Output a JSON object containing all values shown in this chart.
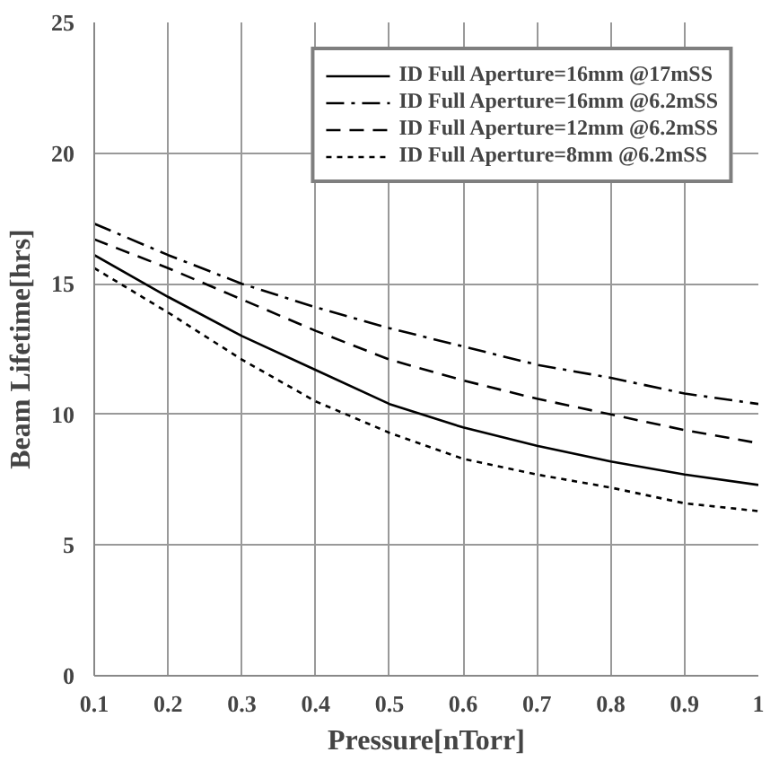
{
  "chart_data": {
    "type": "line",
    "xlabel": "Pressure[nTorr]",
    "ylabel": "Beam Lifetime[hrs]",
    "x": [
      0.1,
      0.2,
      0.3,
      0.4,
      0.5,
      0.6,
      0.7,
      0.8,
      0.9,
      1.0
    ],
    "xlim": [
      0.1,
      1
    ],
    "xticks": [
      0.1,
      0.2,
      0.3,
      0.4,
      0.5,
      0.6,
      0.7,
      0.8,
      0.9,
      1
    ],
    "ylim": [
      0,
      25
    ],
    "yticks": [
      0,
      5,
      10,
      15,
      20,
      25
    ],
    "grid": true,
    "legend": "top right",
    "marker": "none",
    "series": [
      {
        "name": "ID Full Aperture=16mm @17mSS",
        "color": "#000000",
        "line_style": "solid",
        "values": [
          16.1,
          14.5,
          13.0,
          11.7,
          10.4,
          9.5,
          8.8,
          8.2,
          7.7,
          7.3
        ]
      },
      {
        "name": "ID Full Aperture=16mm @6.2mSS",
        "color": "#000000",
        "line_style": "dashdot",
        "values": [
          17.3,
          16.1,
          15.0,
          14.1,
          13.3,
          12.6,
          11.9,
          11.4,
          10.8,
          10.4
        ]
      },
      {
        "name": "ID Full Aperture=12mm @6.2mSS",
        "color": "#000000",
        "line_style": "dashed",
        "values": [
          16.7,
          15.6,
          14.4,
          13.2,
          12.1,
          11.3,
          10.6,
          10.0,
          9.4,
          8.9
        ]
      },
      {
        "name": "ID Full Aperture=8mm @6.2mSS",
        "color": "#000000",
        "line_style": "dotted",
        "values": [
          15.6,
          13.9,
          12.1,
          10.5,
          9.3,
          8.3,
          7.7,
          7.2,
          6.6,
          6.3
        ]
      }
    ]
  }
}
